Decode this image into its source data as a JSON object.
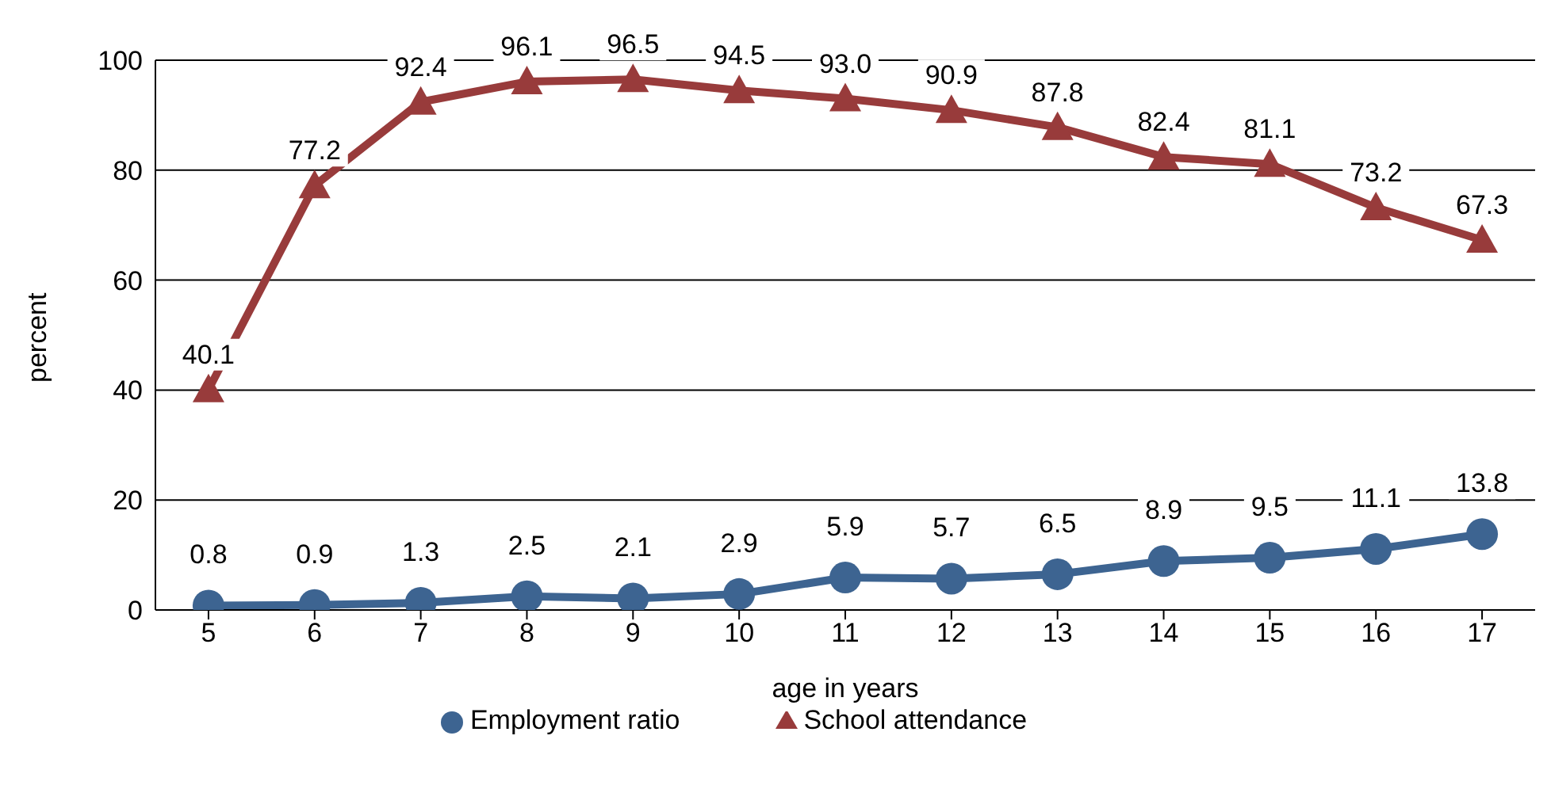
{
  "chart_data": {
    "type": "line",
    "xlabel": "age in years",
    "ylabel": "percent",
    "categories": [
      "5",
      "6",
      "7",
      "8",
      "9",
      "10",
      "11",
      "12",
      "13",
      "14",
      "15",
      "16",
      "17"
    ],
    "series": [
      {
        "name": "Employment ratio",
        "color": "#3d6491",
        "marker": "circle",
        "values": [
          0.8,
          0.9,
          1.3,
          2.5,
          2.1,
          2.9,
          5.9,
          5.7,
          6.5,
          8.9,
          9.5,
          11.1,
          13.8
        ],
        "value_labels": [
          "0.8",
          "0.9",
          "1.3",
          "2.5",
          "2.1",
          "2.9",
          "5.9",
          "5.7",
          "6.5",
          "8.9",
          "9.5",
          "11.1",
          "13.8"
        ]
      },
      {
        "name": "School attendance",
        "color": "#983b3b",
        "marker": "triangle",
        "values": [
          40.1,
          77.2,
          92.4,
          96.1,
          96.5,
          94.5,
          93.0,
          90.9,
          87.8,
          82.4,
          81.1,
          73.2,
          67.3
        ],
        "value_labels": [
          "40.1",
          "77.2",
          "92.4",
          "96.1",
          "96.5",
          "94.5",
          "93.0",
          "90.9",
          "87.8",
          "82.4",
          "81.1",
          "73.2",
          "67.3"
        ]
      }
    ],
    "ylim": [
      0,
      100
    ],
    "yticks": [
      0,
      20,
      40,
      60,
      80,
      100
    ],
    "grid": "y",
    "legend": "bottom"
  }
}
